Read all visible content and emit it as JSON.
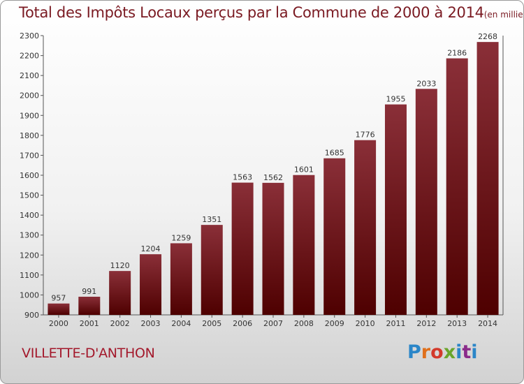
{
  "title": "Total des Impôts Locaux perçus par la Commune de 2000 à 2014",
  "subtitle": "(en milliers d'€)",
  "commune": "VILLETTE-D'ANTHON",
  "logo": "Proxiti",
  "colors": {
    "bar_top": "#8a2f38",
    "bar_bottom": "#4e0000",
    "title": "#7a1a22",
    "commune": "#a3182b"
  },
  "chart_data": {
    "type": "bar",
    "title": "Total des Impôts Locaux perçus par la Commune de 2000 à 2014",
    "subtitle": "(en milliers d'€)",
    "xlabel": "",
    "ylabel": "",
    "categories": [
      "2000",
      "2001",
      "2002",
      "2003",
      "2004",
      "2005",
      "2006",
      "2007",
      "2008",
      "2009",
      "2010",
      "2011",
      "2012",
      "2013",
      "2014"
    ],
    "values": [
      957,
      991,
      1120,
      1204,
      1259,
      1351,
      1563,
      1562,
      1601,
      1685,
      1776,
      1955,
      2033,
      2186,
      2268
    ],
    "ylim": [
      900,
      2300
    ],
    "yticks": [
      900,
      1000,
      1100,
      1200,
      1300,
      1400,
      1500,
      1600,
      1700,
      1800,
      1900,
      2000,
      2100,
      2200,
      2300
    ],
    "grid": false
  }
}
